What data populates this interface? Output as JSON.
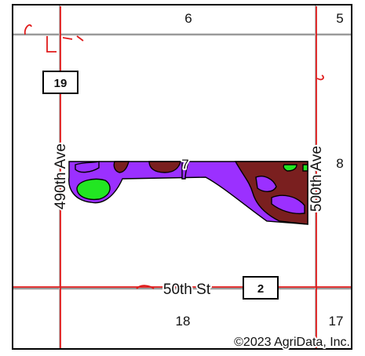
{
  "map": {
    "sections": [
      "6",
      "5",
      "7",
      "8",
      "18",
      "17"
    ],
    "roads": {
      "west_ave": "490th Ave",
      "east_ave": "500th Ave",
      "south_st": "50th St"
    },
    "route_shields": [
      "19",
      "2"
    ],
    "copyright": "©2023 AgriData, Inc.",
    "colors": {
      "road": "#e01b1b",
      "section_line": "#9a9a9a",
      "zone_purple": "#9b30ff",
      "zone_brown": "#7a1f1f",
      "zone_green": "#22e622"
    }
  }
}
